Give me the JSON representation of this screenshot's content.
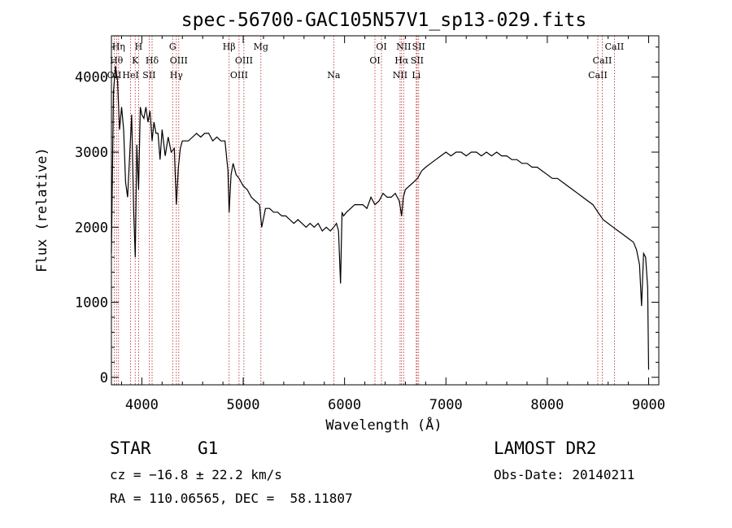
{
  "chart_data": {
    "type": "line",
    "title": "spec-56700-GAC105N57V1_sp13-029.fits",
    "xlabel": "Wavelength (Å)",
    "ylabel": "Flux (relative)",
    "xlim": [
      3700,
      9100
    ],
    "ylim": [
      -100,
      4550
    ],
    "x_ticks": [
      4000,
      5000,
      6000,
      7000,
      8000,
      9000
    ],
    "y_ticks": [
      0,
      1000,
      2000,
      3000,
      4000
    ],
    "grid": false,
    "series": [
      {
        "x": [
          3700,
          3720,
          3740,
          3760,
          3780,
          3800,
          3820,
          3840,
          3860,
          3880,
          3900,
          3920,
          3935,
          3950,
          3968,
          3985,
          4000,
          4020,
          4040,
          4060,
          4080,
          4101,
          4120,
          4140,
          4160,
          4180,
          4200,
          4230,
          4260,
          4290,
          4320,
          4340,
          4360,
          4380,
          4400,
          4430,
          4460,
          4500,
          4540,
          4580,
          4620,
          4660,
          4700,
          4740,
          4780,
          4820,
          4850,
          4861,
          4880,
          4900,
          4930,
          4960,
          5000,
          5040,
          5080,
          5120,
          5160,
          5183,
          5220,
          5260,
          5300,
          5340,
          5380,
          5420,
          5460,
          5500,
          5540,
          5580,
          5620,
          5660,
          5700,
          5740,
          5780,
          5820,
          5860,
          5893,
          5920,
          5940,
          5960,
          5975,
          5990,
          6020,
          6060,
          6100,
          6140,
          6180,
          6220,
          6260,
          6300,
          6340,
          6380,
          6420,
          6460,
          6500,
          6540,
          6563,
          6580,
          6600,
          6640,
          6680,
          6720,
          6760,
          6800,
          6850,
          6900,
          6950,
          7000,
          7050,
          7100,
          7150,
          7200,
          7250,
          7300,
          7350,
          7400,
          7450,
          7500,
          7550,
          7600,
          7650,
          7700,
          7750,
          7800,
          7850,
          7900,
          7950,
          8000,
          8050,
          8100,
          8150,
          8200,
          8250,
          8300,
          8350,
          8400,
          8450,
          8500,
          8550,
          8600,
          8650,
          8700,
          8750,
          8800,
          8850,
          8880,
          8910,
          8930,
          8950,
          8970,
          8990,
          9000
        ],
        "y": [
          1650,
          3800,
          4150,
          3950,
          3300,
          3600,
          3300,
          2600,
          2400,
          2950,
          3500,
          2200,
          1600,
          3100,
          2500,
          3600,
          3500,
          3450,
          3600,
          3400,
          3550,
          3150,
          3400,
          3250,
          3250,
          2900,
          3300,
          2950,
          3200,
          3000,
          3050,
          2300,
          2800,
          3050,
          3150,
          3150,
          3150,
          3200,
          3250,
          3200,
          3250,
          3250,
          3150,
          3200,
          3150,
          3150,
          2750,
          2200,
          2700,
          2850,
          2700,
          2650,
          2550,
          2500,
          2400,
          2350,
          2300,
          2000,
          2250,
          2250,
          2200,
          2200,
          2150,
          2150,
          2100,
          2050,
          2100,
          2050,
          2000,
          2050,
          2000,
          2050,
          1950,
          2000,
          1950,
          2000,
          2050,
          1950,
          1250,
          2200,
          2150,
          2200,
          2250,
          2300,
          2300,
          2300,
          2250,
          2400,
          2300,
          2350,
          2450,
          2400,
          2400,
          2450,
          2350,
          2150,
          2400,
          2500,
          2550,
          2600,
          2650,
          2750,
          2800,
          2850,
          2900,
          2950,
          3000,
          2950,
          3000,
          3000,
          2950,
          3000,
          3000,
          2950,
          3000,
          2950,
          3000,
          2950,
          2950,
          2900,
          2900,
          2850,
          2850,
          2800,
          2800,
          2750,
          2700,
          2650,
          2650,
          2600,
          2550,
          2500,
          2450,
          2400,
          2350,
          2300,
          2200,
          2100,
          2050,
          2000,
          1950,
          1900,
          1850,
          1800,
          1700,
          1500,
          950,
          1650,
          1600,
          1200,
          100
        ]
      }
    ],
    "lines": [
      {
        "x": 3728,
        "label": "OII",
        "row": 2
      },
      {
        "x": 3750,
        "label": "Hθ",
        "row": 1
      },
      {
        "x": 3771,
        "label": "Hη",
        "row": 0
      },
      {
        "x": 3889,
        "label": "HeI",
        "row": 2
      },
      {
        "x": 3934,
        "label": "K",
        "row": 1
      },
      {
        "x": 3968,
        "label": "H",
        "row": 0
      },
      {
        "x": 4072,
        "label": "SII",
        "row": 2
      },
      {
        "x": 4101,
        "label": "Hδ",
        "row": 1
      },
      {
        "x": 4304,
        "label": "G",
        "row": 0
      },
      {
        "x": 4340,
        "label": "Hγ",
        "row": 2
      },
      {
        "x": 4364,
        "label": "OIII",
        "row": 1
      },
      {
        "x": 4861,
        "label": "Hβ",
        "row": 0
      },
      {
        "x": 4959,
        "label": "OIII",
        "row": 2
      },
      {
        "x": 5007,
        "label": "OIII",
        "row": 1
      },
      {
        "x": 5175,
        "label": "Mg",
        "row": 0
      },
      {
        "x": 5893,
        "label": "Na",
        "row": 2
      },
      {
        "x": 6300,
        "label": "OI",
        "row": 1
      },
      {
        "x": 6364,
        "label": "OI",
        "row": 0
      },
      {
        "x": 6548,
        "label": "NII",
        "row": 2
      },
      {
        "x": 6563,
        "label": "Hα",
        "row": 1
      },
      {
        "x": 6583,
        "label": "NII",
        "row": 0
      },
      {
        "x": 6707,
        "label": "Li",
        "row": 2
      },
      {
        "x": 6716,
        "label": "SII",
        "row": 1
      },
      {
        "x": 6731,
        "label": "SII",
        "row": 0
      },
      {
        "x": 8498,
        "label": "CaII",
        "row": 2
      },
      {
        "x": 8542,
        "label": "CaII",
        "row": 1
      },
      {
        "x": 8662,
        "label": "CaII",
        "row": 0
      }
    ]
  },
  "info": {
    "object_class": "STAR",
    "subclass": "G1",
    "survey": "LAMOST DR2",
    "cz": "cz = −16.8 ± 22.2 km/s",
    "obs_date": "Obs-Date: 20140211",
    "coords": "RA = 110.06565, DEC =  58.11807"
  }
}
